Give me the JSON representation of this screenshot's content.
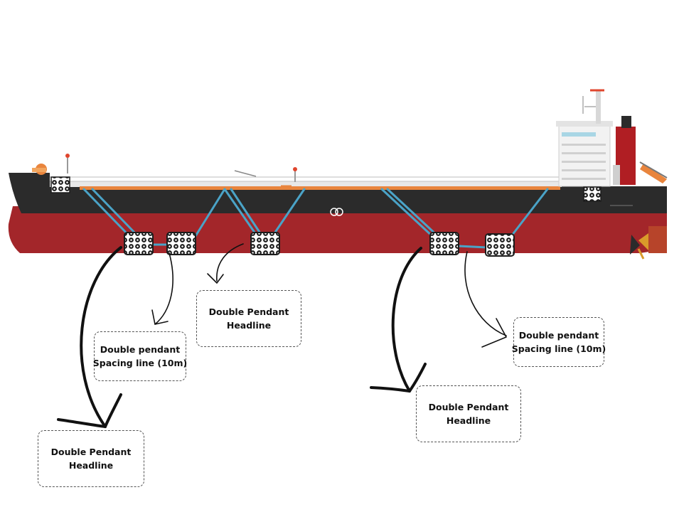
{
  "diagram": {
    "labels": [
      {
        "id": "headline-left",
        "lines": [
          "Double Pendant",
          "Headline"
        ]
      },
      {
        "id": "spacing-left",
        "lines": [
          "Double pendant",
          "Spacing line (10m)"
        ]
      },
      {
        "id": "headline-mid",
        "lines": [
          "Double Pendant",
          "Headline"
        ]
      },
      {
        "id": "headline-right",
        "lines": [
          "Double Pendant",
          "Headline"
        ]
      },
      {
        "id": "spacing-right",
        "lines": [
          "Double pendant",
          "Spacing line (10m)"
        ]
      }
    ],
    "colors": {
      "hull_top": "#2b2b2b",
      "hull_bottom": "#a3262a",
      "deck_rail": "#c9c9c9",
      "pipe_orange": "#e9853d",
      "pendant_line": "#4aa3c7",
      "funnel": "#b01e23",
      "arrow": "#111111",
      "fender": "#1c1c1c"
    },
    "icons": [
      "fender-icon",
      "ship-icon",
      "curved-arrow-icon"
    ]
  }
}
